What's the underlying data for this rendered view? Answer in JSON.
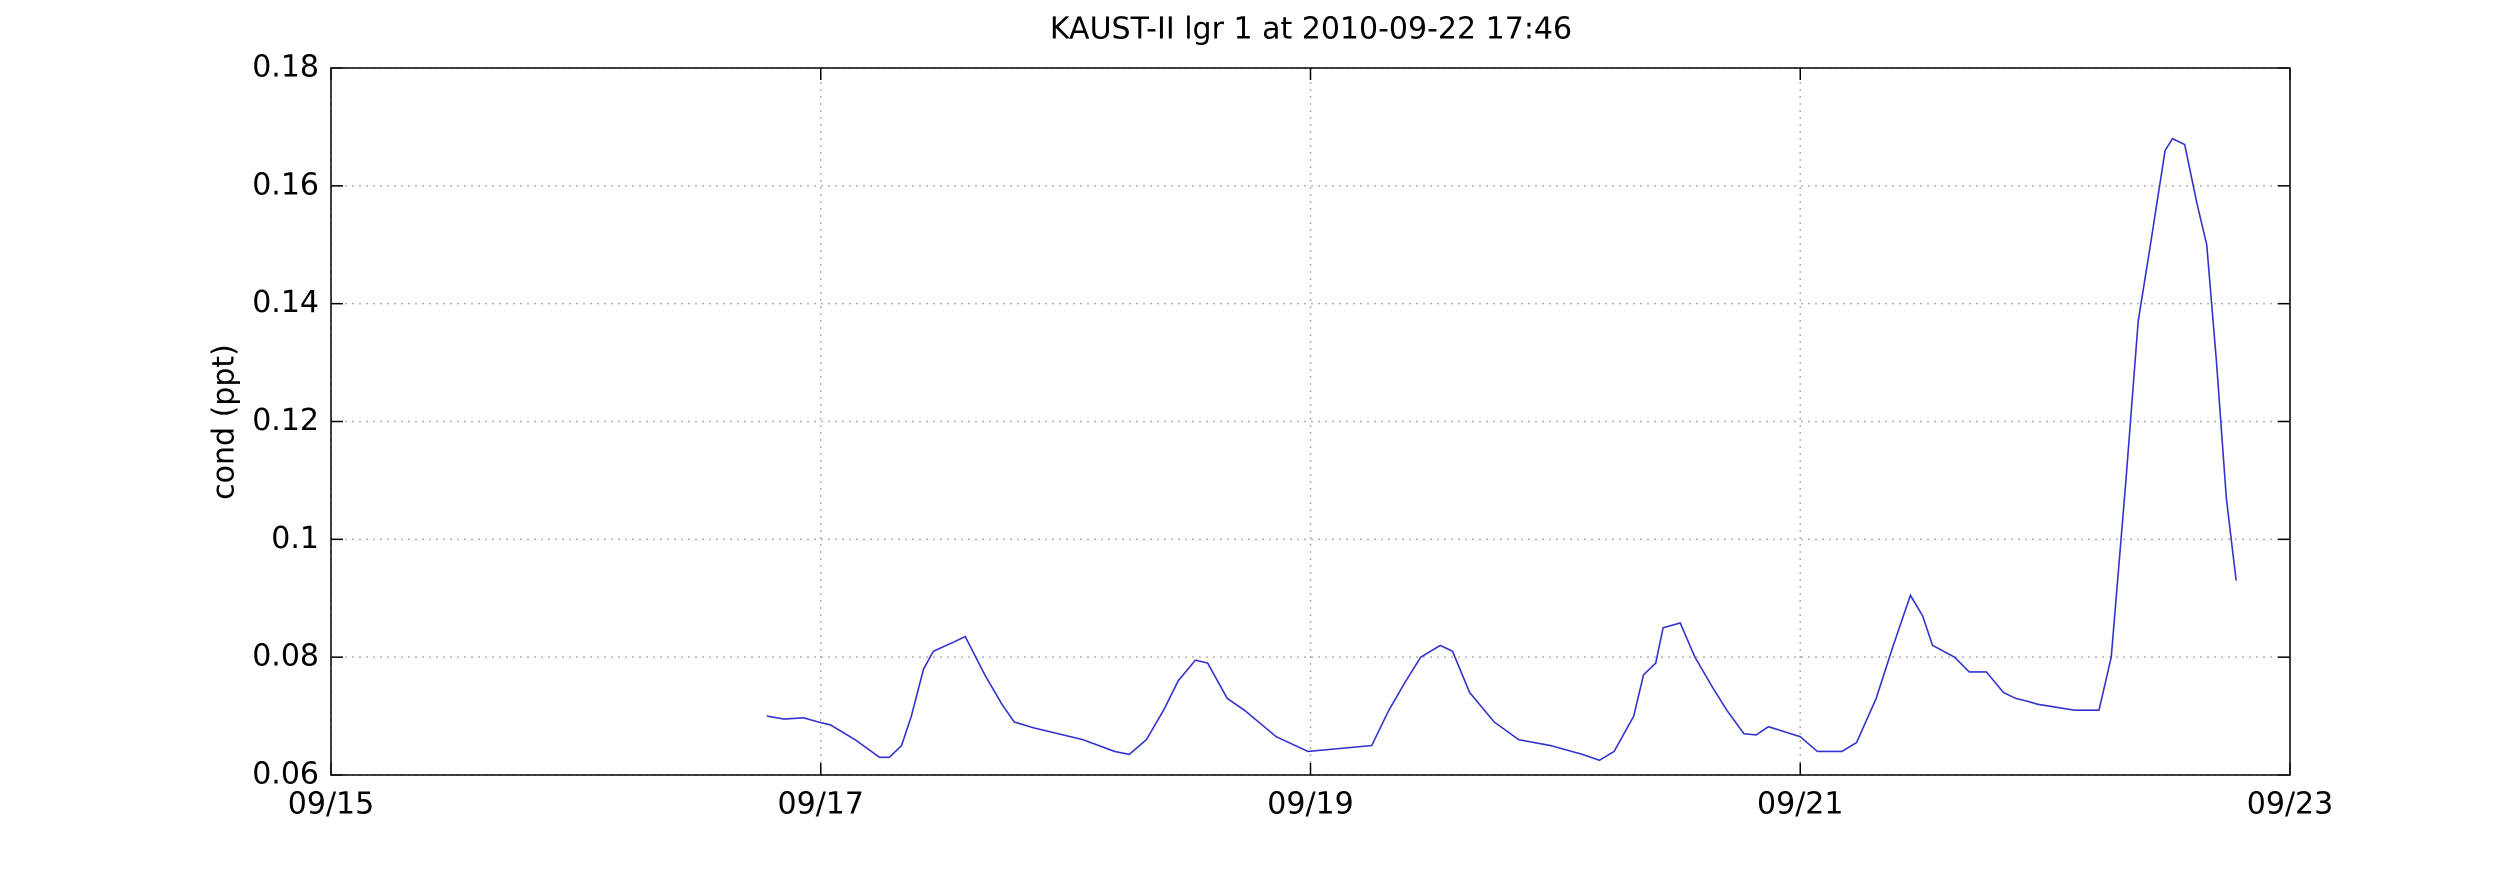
{
  "chart_data": {
    "type": "line",
    "title": "KAUST-II lgr 1 at 2010-09-22 17:46",
    "y_label": "cond (ppt)",
    "xlim": [
      15,
      23
    ],
    "xticks": [
      {
        "value": 15,
        "label": "09/15"
      },
      {
        "value": 17,
        "label": "09/17"
      },
      {
        "value": 19,
        "label": "09/19"
      },
      {
        "value": 21,
        "label": "09/21"
      },
      {
        "value": 23,
        "label": "09/23"
      }
    ],
    "ylim": [
      0.06,
      0.18
    ],
    "yticks": [
      0.06,
      0.08,
      0.1,
      0.12,
      0.14,
      0.16,
      0.18
    ],
    "grid": true,
    "series": [
      {
        "color": "#3333cc",
        "x": [
          16.78,
          16.85,
          16.93,
          16.99,
          17.04,
          17.14,
          17.24,
          17.28,
          17.33,
          17.37,
          17.42,
          17.46,
          17.54,
          17.59,
          17.67,
          17.74,
          17.79,
          17.87,
          17.97,
          18.07,
          18.2,
          18.26,
          18.33,
          18.4,
          18.46,
          18.53,
          18.58,
          18.66,
          18.73,
          18.86,
          18.99,
          19.12,
          19.25,
          19.32,
          19.39,
          19.45,
          19.53,
          19.58,
          19.65,
          19.75,
          19.85,
          19.98,
          20.11,
          20.18,
          20.24,
          20.32,
          20.36,
          20.41,
          20.44,
          20.51,
          20.57,
          20.64,
          20.7,
          20.77,
          20.82,
          20.87,
          21.0,
          21.07,
          21.17,
          21.23,
          21.31,
          21.38,
          21.45,
          21.5,
          21.54,
          21.63,
          21.69,
          21.76,
          21.83,
          21.88,
          21.93,
          21.97,
          22.12,
          22.22,
          22.27,
          22.33,
          22.38,
          22.43,
          22.49,
          22.52,
          22.57,
          22.62,
          22.66,
          22.7,
          22.74,
          22.78
        ],
        "values": [
          0.07,
          0.0695,
          0.0697,
          0.069,
          0.0685,
          0.066,
          0.063,
          0.063,
          0.065,
          0.07,
          0.078,
          0.081,
          0.0825,
          0.0835,
          0.077,
          0.072,
          0.069,
          0.068,
          0.067,
          0.066,
          0.064,
          0.0635,
          0.066,
          0.071,
          0.076,
          0.0795,
          0.079,
          0.073,
          0.071,
          0.0665,
          0.064,
          0.0645,
          0.065,
          0.071,
          0.076,
          0.08,
          0.082,
          0.081,
          0.074,
          0.069,
          0.066,
          0.065,
          0.0635,
          0.0625,
          0.064,
          0.07,
          0.077,
          0.079,
          0.085,
          0.0858,
          0.08,
          0.075,
          0.071,
          0.067,
          0.0668,
          0.0682,
          0.0665,
          0.064,
          0.064,
          0.0655,
          0.073,
          0.082,
          0.0905,
          0.087,
          0.082,
          0.08,
          0.0775,
          0.0775,
          0.074,
          0.073,
          0.0725,
          0.072,
          0.071,
          0.071,
          0.08,
          0.11,
          0.137,
          0.15,
          0.166,
          0.168,
          0.167,
          0.157,
          0.15,
          0.13,
          0.107,
          0.093
        ]
      }
    ]
  }
}
